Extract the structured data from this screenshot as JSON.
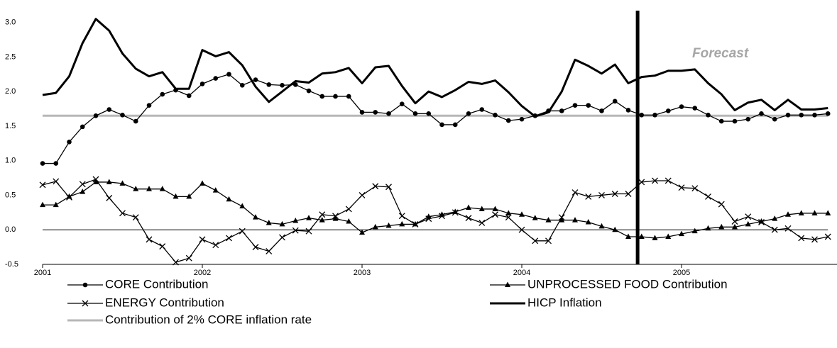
{
  "chart_data": {
    "type": "line",
    "annotation": "Forecast",
    "categories": [
      "2001",
      null,
      null,
      null,
      null,
      null,
      null,
      null,
      null,
      null,
      null,
      null,
      "2002",
      null,
      null,
      null,
      null,
      null,
      null,
      null,
      null,
      null,
      null,
      null,
      "2003",
      null,
      null,
      null,
      null,
      null,
      null,
      null,
      null,
      null,
      null,
      null,
      "2004",
      null,
      null,
      null,
      null,
      null,
      null,
      null,
      null,
      null,
      null,
      null,
      "2005",
      null,
      null,
      null,
      null,
      null,
      null,
      null,
      null,
      null,
      null,
      null
    ],
    "ylim": [
      -0.5,
      3.17
    ],
    "yticks": [
      {
        "value": -0.5,
        "label": "-0.5"
      },
      {
        "value": 0,
        "label": "0.0"
      },
      {
        "value": 0.5,
        "label": "0.5"
      },
      {
        "value": 1,
        "label": "1.0"
      },
      {
        "value": 1.5,
        "label": "1.5"
      },
      {
        "value": 2,
        "label": "2.0"
      },
      {
        "value": 2.5,
        "label": "2.5"
      },
      {
        "value": 3,
        "label": "3.0"
      }
    ],
    "series": [
      {
        "name": "CORE Contribution",
        "color": "#000000",
        "marker": "circle",
        "line_width": 1.3,
        "values": [
          0.96,
          0.96,
          1.27,
          1.49,
          1.65,
          1.74,
          1.66,
          1.57,
          1.8,
          1.96,
          2.02,
          1.94,
          2.11,
          2.19,
          2.25,
          2.09,
          2.17,
          2.1,
          2.09,
          2.1,
          2.01,
          1.93,
          1.93,
          1.93,
          1.7,
          1.7,
          1.68,
          1.82,
          1.68,
          1.68,
          1.52,
          1.52,
          1.68,
          1.74,
          1.66,
          1.58,
          1.6,
          1.65,
          1.72,
          1.72,
          1.8,
          1.8,
          1.72,
          1.86,
          1.73,
          1.66,
          1.66,
          1.72,
          1.78,
          1.76,
          1.66,
          1.57,
          1.57,
          1.6,
          1.68,
          1.6,
          1.66,
          1.66,
          1.66,
          1.68
        ]
      },
      {
        "name": "UNPROCESSED FOOD Contribution",
        "color": "#000000",
        "marker": "triangle",
        "line_width": 1.3,
        "values": [
          0.36,
          0.36,
          0.48,
          0.55,
          0.69,
          0.69,
          0.67,
          0.59,
          0.59,
          0.59,
          0.48,
          0.48,
          0.67,
          0.57,
          0.44,
          0.34,
          0.18,
          0.1,
          0.08,
          0.13,
          0.17,
          0.14,
          0.16,
          0.12,
          -0.04,
          0.04,
          0.06,
          0.08,
          0.08,
          0.19,
          0.22,
          0.26,
          0.32,
          0.3,
          0.3,
          0.24,
          0.22,
          0.17,
          0.14,
          0.14,
          0.14,
          0.11,
          0.05,
          0.0,
          -0.1,
          -0.1,
          -0.12,
          -0.1,
          -0.06,
          -0.02,
          0.02,
          0.04,
          0.04,
          0.08,
          0.12,
          0.16,
          0.22,
          0.24,
          0.24,
          0.24
        ]
      },
      {
        "name": "ENERGY Contribution",
        "color": "#000000",
        "marker": "x",
        "line_width": 1.3,
        "values": [
          0.65,
          0.7,
          0.47,
          0.66,
          0.73,
          0.46,
          0.24,
          0.18,
          -0.14,
          -0.24,
          -0.47,
          -0.41,
          -0.14,
          -0.22,
          -0.12,
          -0.02,
          -0.25,
          -0.31,
          -0.11,
          -0.01,
          -0.02,
          0.22,
          0.2,
          0.3,
          0.5,
          0.63,
          0.62,
          0.2,
          0.08,
          0.16,
          0.2,
          0.25,
          0.17,
          0.1,
          0.22,
          0.18,
          0.0,
          -0.16,
          -0.16,
          0.18,
          0.54,
          0.48,
          0.5,
          0.52,
          0.52,
          0.69,
          0.71,
          0.71,
          0.61,
          0.6,
          0.48,
          0.37,
          0.12,
          0.19,
          0.11,
          0.0,
          0.02,
          -0.12,
          -0.14,
          -0.1
        ]
      },
      {
        "name": "HICP Inflation",
        "color": "#000000",
        "marker": "none",
        "line_width": 3,
        "values": [
          1.95,
          1.98,
          2.22,
          2.7,
          3.05,
          2.88,
          2.55,
          2.33,
          2.22,
          2.28,
          2.04,
          2.04,
          2.6,
          2.51,
          2.57,
          2.38,
          2.07,
          1.85,
          2.0,
          2.15,
          2.13,
          2.26,
          2.28,
          2.34,
          2.12,
          2.35,
          2.37,
          2.08,
          1.83,
          2.0,
          1.92,
          2.02,
          2.14,
          2.11,
          2.16,
          1.99,
          1.79,
          1.64,
          1.7,
          2.0,
          2.46,
          2.37,
          2.26,
          2.39,
          2.12,
          2.21,
          2.23,
          2.3,
          2.3,
          2.32,
          2.12,
          1.96,
          1.73,
          1.84,
          1.88,
          1.73,
          1.88,
          1.74,
          1.74,
          1.76
        ]
      },
      {
        "name": "Contribution of 2% CORE inflation rate",
        "color": "#b7b7b7",
        "marker": "none",
        "line_width": 3,
        "values": [
          1.65,
          1.65,
          1.65,
          1.65,
          1.65,
          1.65,
          1.65,
          1.65,
          1.65,
          1.65,
          1.65,
          1.65,
          1.65,
          1.65,
          1.65,
          1.65,
          1.65,
          1.65,
          1.65,
          1.65,
          1.65,
          1.65,
          1.65,
          1.65,
          1.65,
          1.65,
          1.65,
          1.65,
          1.65,
          1.65,
          1.65,
          1.65,
          1.65,
          1.65,
          1.65,
          1.65,
          1.65,
          1.65,
          1.65,
          1.65,
          1.65,
          1.65,
          1.65,
          1.65,
          1.65,
          1.65,
          1.65,
          1.65,
          1.65,
          1.65,
          1.65,
          1.65,
          1.65,
          1.65,
          1.65,
          1.65,
          1.65,
          1.65,
          1.65,
          1.65
        ]
      }
    ]
  }
}
